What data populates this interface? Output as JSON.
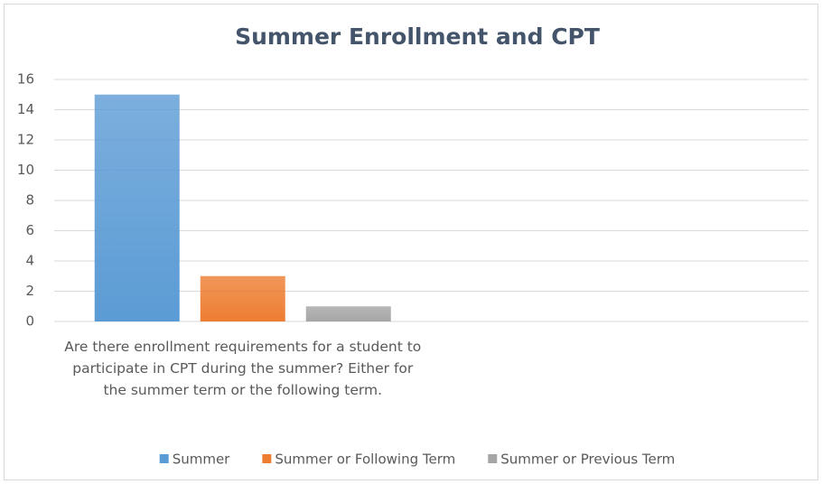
{
  "chart_data": {
    "type": "bar",
    "title": "Summer Enrollment and CPT",
    "categories": [
      "Are there enrollment requirements for a student to participate in CPT during the summer? Either for the summer term or the following term.",
      null
    ],
    "series": [
      {
        "name": "Summer",
        "color": "#5b9bd5",
        "values": [
          15,
          null
        ]
      },
      {
        "name": "Summer or Following Term",
        "color": "#ed7d31",
        "values": [
          3,
          null
        ]
      },
      {
        "name": "Summer or Previous Term",
        "color": "#a5a5a5",
        "values": [
          1,
          null
        ]
      }
    ],
    "ylim": [
      0,
      16
    ],
    "yticks": [
      0,
      2,
      4,
      6,
      8,
      10,
      12,
      14,
      16
    ],
    "grid": true,
    "legend": "bottom"
  }
}
